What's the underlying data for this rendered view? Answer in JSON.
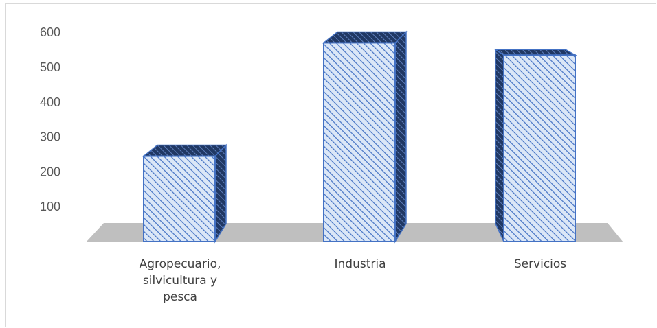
{
  "chart_data": {
    "type": "bar",
    "style": "3d-column",
    "title": "",
    "xlabel": "",
    "ylabel": "",
    "categories": [
      [
        "Agropecuario,",
        "silvicultura y",
        "pesca"
      ],
      [
        "Industria"
      ],
      [
        "Servicios"
      ]
    ],
    "values": [
      245,
      570,
      535
    ],
    "ylim": [
      0,
      600
    ],
    "yticks": [
      "100",
      "200",
      "300",
      "400",
      "500",
      "600"
    ],
    "ytick_values": [
      100,
      200,
      300,
      400,
      500,
      600
    ],
    "grid": false,
    "legend": "none",
    "colors": {
      "bar_fill": "#dbe7f7",
      "bar_hatch": "#4472c4",
      "bar_edge": "#4472c4",
      "bar_side": "#203864",
      "floor": "#bfbfbf"
    }
  }
}
